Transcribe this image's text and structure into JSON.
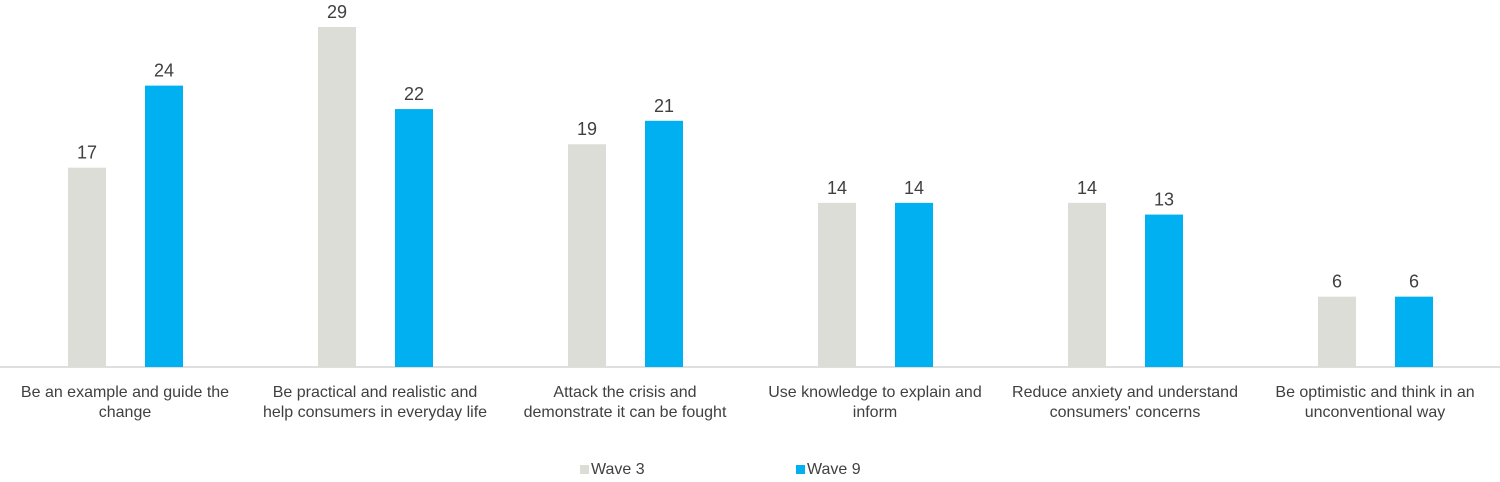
{
  "chart_data": {
    "type": "bar",
    "categories": [
      [
        "Be an example and guide the",
        "change"
      ],
      [
        "Be practical and realistic and",
        "help consumers in everyday life"
      ],
      [
        "Attack the crisis and",
        "demonstrate it can be fought"
      ],
      [
        "Use knowledge to explain and",
        "inform"
      ],
      [
        "Reduce anxiety and understand",
        "consumers' concerns"
      ],
      [
        "Be optimistic and think in an",
        "unconventional way"
      ]
    ],
    "series": [
      {
        "name": "Wave 3",
        "color": "#DDDDD8",
        "values": [
          17,
          29,
          19,
          14,
          14,
          6
        ]
      },
      {
        "name": "Wave 9",
        "color": "#00B0F0",
        "values": [
          24,
          22,
          21,
          14,
          13,
          6
        ]
      }
    ],
    "ylim": [
      0,
      29
    ],
    "grid": false,
    "data_labels": true,
    "legend": "bottom-center"
  }
}
